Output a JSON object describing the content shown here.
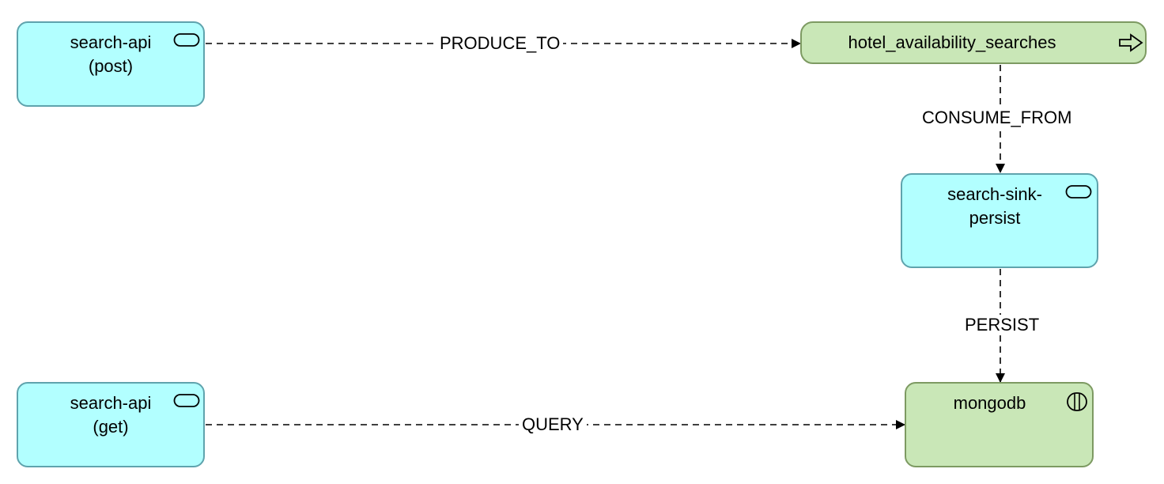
{
  "nodes": {
    "search_api_post": {
      "line1": "search-api",
      "line2": "(post)",
      "icon": "service-icon"
    },
    "hotel_availability_searches": {
      "label": "hotel_availability_searches",
      "icon": "event-arrow-icon"
    },
    "search_sink_persist": {
      "line1": "search-sink-",
      "line2": "persist",
      "icon": "service-icon"
    },
    "search_api_get": {
      "line1": "search-api",
      "line2": "(get)",
      "icon": "service-icon"
    },
    "mongodb": {
      "label": "mongodb",
      "icon": "data-store-icon"
    }
  },
  "edges": {
    "produce_to": "PRODUCE_TO",
    "consume_from": "CONSUME_FROM",
    "persist": "PERSIST",
    "query": "QUERY"
  },
  "colors": {
    "service_fill": "#b2ffff",
    "service_border": "#5fa3ad",
    "store_fill": "#c9e7b7",
    "store_border": "#7d9a62",
    "edge": "#000000"
  }
}
